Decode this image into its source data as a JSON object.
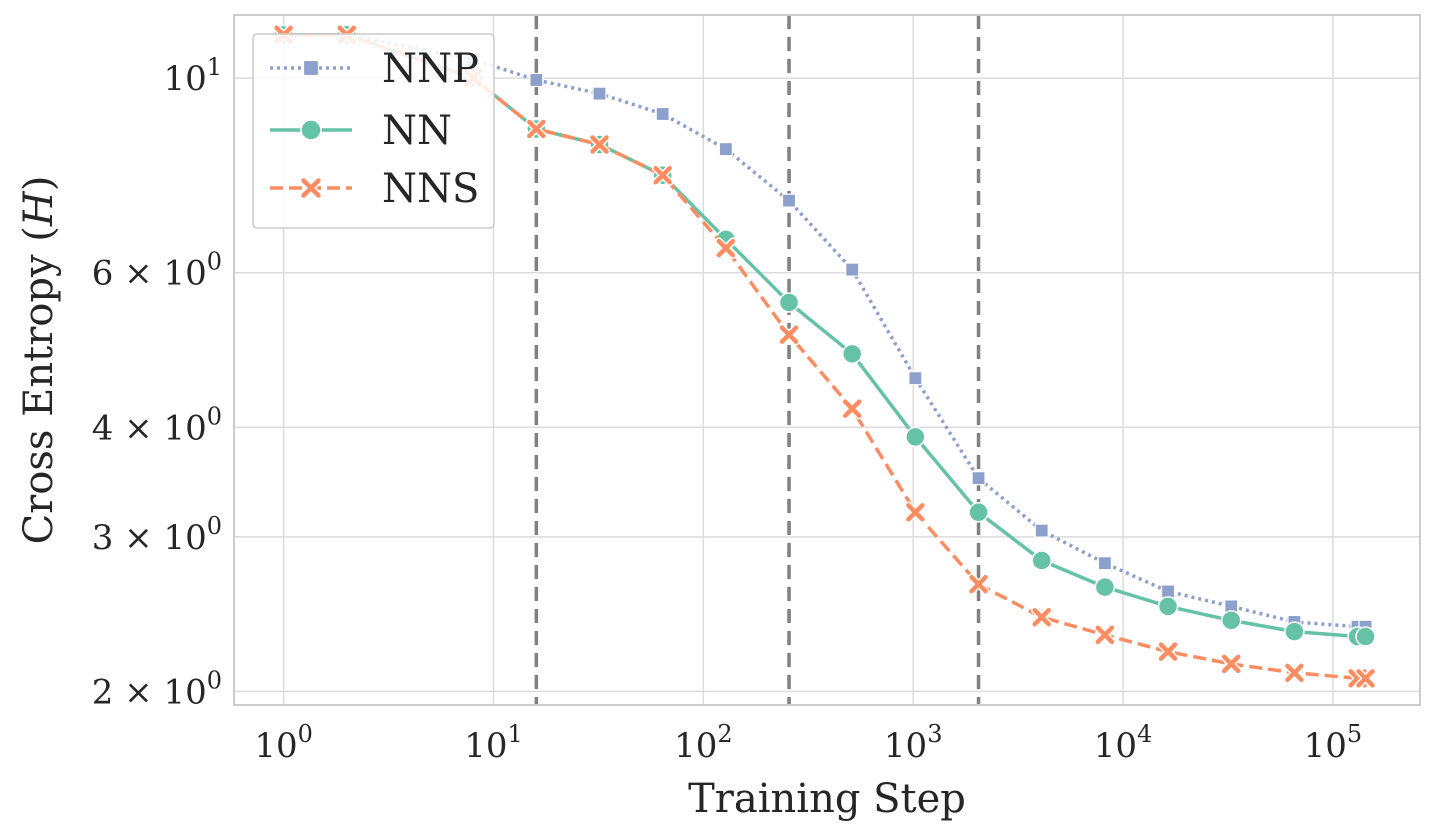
{
  "chart_data": {
    "type": "line",
    "title": "",
    "xlabel": "Training Step",
    "ylabel": "Cross Entropy ($H$)",
    "xscale": "log",
    "yscale": "log",
    "xlim": [
      0.58,
      260000
    ],
    "ylim": [
      1.93,
      11.8
    ],
    "x_ticks": [
      {
        "value": 1,
        "base": "10",
        "exp": "0"
      },
      {
        "value": 10,
        "base": "10",
        "exp": "1"
      },
      {
        "value": 100,
        "base": "10",
        "exp": "2"
      },
      {
        "value": 1000,
        "base": "10",
        "exp": "3"
      },
      {
        "value": 10000,
        "base": "10",
        "exp": "4"
      },
      {
        "value": 100000,
        "base": "10",
        "exp": "5"
      }
    ],
    "y_ticks": [
      {
        "value": 10,
        "mant": "",
        "base": "10",
        "exp": "1"
      },
      {
        "value": 6,
        "mant": "6 × ",
        "base": "10",
        "exp": "0"
      },
      {
        "value": 4,
        "mant": "4 × ",
        "base": "10",
        "exp": "0"
      },
      {
        "value": 3,
        "mant": "3 × ",
        "base": "10",
        "exp": "0"
      },
      {
        "value": 2,
        "mant": "2 × ",
        "base": "10",
        "exp": "0"
      }
    ],
    "vlines": [
      16,
      256,
      2048
    ],
    "legend": {
      "position": "top-left"
    },
    "series": [
      {
        "name": "NNP",
        "color": "#8da0cb",
        "marker": "square",
        "linestyle": "dotted",
        "x": [
          1,
          2,
          8,
          16,
          32,
          64,
          128,
          256,
          512,
          1024,
          2048,
          4096,
          8192,
          16384,
          32768,
          65536,
          131072,
          143000
        ],
        "y": [
          11.2,
          11.2,
          10.5,
          9.95,
          9.6,
          9.1,
          8.3,
          7.25,
          6.05,
          4.55,
          3.5,
          3.05,
          2.8,
          2.6,
          2.5,
          2.4,
          2.37,
          2.37
        ]
      },
      {
        "name": "NN",
        "color": "#66c2a5",
        "marker": "circle",
        "linestyle": "solid",
        "x": [
          1,
          2,
          8,
          16,
          32,
          64,
          128,
          256,
          512,
          1024,
          2048,
          4096,
          8192,
          16384,
          32768,
          65536,
          131072,
          143000
        ],
        "y": [
          11.2,
          11.2,
          10.0,
          8.75,
          8.4,
          7.75,
          6.55,
          5.55,
          4.85,
          3.9,
          3.2,
          2.82,
          2.63,
          2.5,
          2.41,
          2.34,
          2.31,
          2.31
        ]
      },
      {
        "name": "NNS",
        "color": "#fc8d62",
        "marker": "x",
        "linestyle": "dashed",
        "x": [
          1,
          2,
          8,
          16,
          32,
          64,
          128,
          256,
          512,
          1024,
          2048,
          4096,
          8192,
          16384,
          32768,
          65536,
          131072,
          143000
        ],
        "y": [
          11.2,
          11.2,
          10.0,
          8.75,
          8.4,
          7.75,
          6.4,
          5.1,
          4.2,
          3.2,
          2.65,
          2.43,
          2.32,
          2.22,
          2.15,
          2.1,
          2.07,
          2.07
        ]
      }
    ]
  }
}
